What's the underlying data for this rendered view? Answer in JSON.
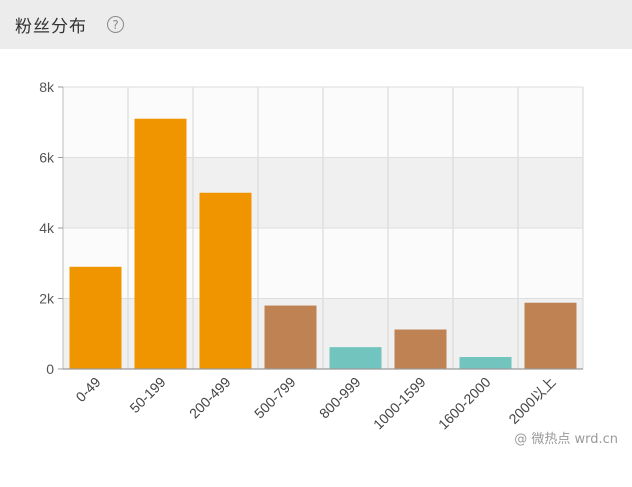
{
  "header": {
    "title": "粉丝分布",
    "help_icon_glyph": "?"
  },
  "watermark": "@ 微热点  wrd.cn",
  "chart_data": {
    "type": "bar",
    "title": "",
    "xlabel": "",
    "ylabel": "",
    "ylim": [
      0,
      8000
    ],
    "yticks": [
      0,
      2000,
      4000,
      6000,
      8000
    ],
    "ytick_labels": [
      "0",
      "2k",
      "4k",
      "6k",
      "8k"
    ],
    "grid": true,
    "categories": [
      "0-49",
      "50-199",
      "200-499",
      "500-799",
      "800-999",
      "1000-1599",
      "1600-2000",
      "2000以上"
    ],
    "values": [
      2900,
      7100,
      5000,
      1800,
      620,
      1120,
      340,
      1880
    ],
    "bar_colors": [
      "#f09400",
      "#f09400",
      "#f09400",
      "#bf8252",
      "#72c5be",
      "#bf8252",
      "#72c5be",
      "#bf8252"
    ]
  }
}
